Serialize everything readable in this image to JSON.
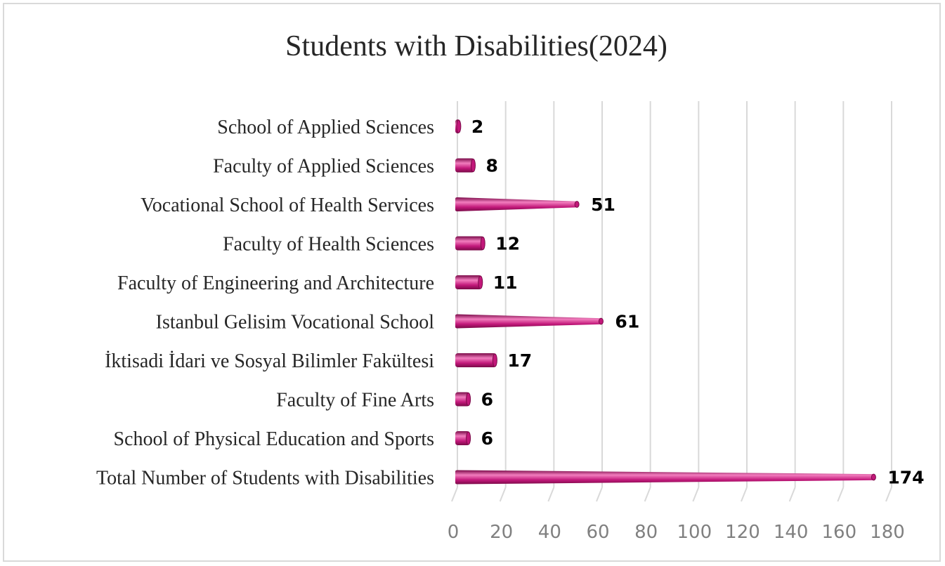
{
  "chart_data": {
    "type": "bar",
    "orientation": "horizontal",
    "title": "Students with Disabilities(2024)",
    "xlabel": "",
    "ylabel": "",
    "categories": [
      "School of Applied Sciences",
      "Faculty of Applied Sciences",
      "Vocational School of Health Services",
      "Faculty of Health Sciences",
      "Faculty of Engineering and Architecture",
      "Istanbul Gelisim Vocational School",
      "İktisadi İdari ve Sosyal Bilimler Fakültesi",
      "Faculty of Fine Arts",
      "School of Physical Education and Sports",
      "Total Number of Students with Disabilities"
    ],
    "values": [
      2,
      8,
      51,
      12,
      11,
      61,
      17,
      6,
      6,
      174
    ],
    "xlim": [
      0,
      180
    ],
    "xticks": [
      "0",
      "20",
      "40",
      "60",
      "80",
      "100",
      "120",
      "140",
      "160",
      "180"
    ],
    "grid": true,
    "legend": "none",
    "bar_color": "#c2187a",
    "bar_highlight": "#f27dbe",
    "bar_shadow": "#7a0a48",
    "grid_color": "#d9d9d9"
  }
}
